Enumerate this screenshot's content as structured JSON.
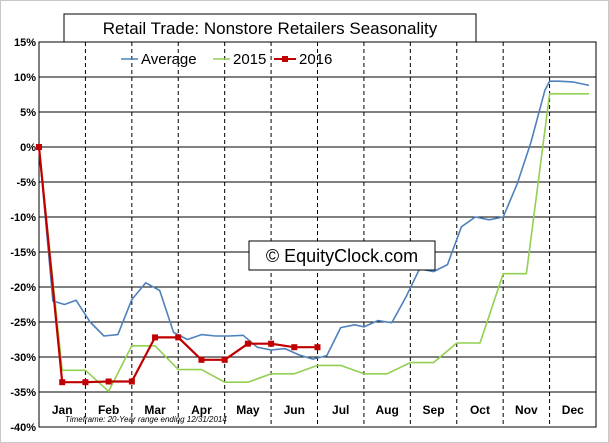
{
  "chart_data": {
    "type": "line",
    "title": "Retail Trade: Nonstore Retailers Seasonality",
    "watermark": "© EquityClock.com",
    "footnote": "Timeframe: 20-Year range ending 12/31/2014",
    "months": [
      "Jan",
      "Feb",
      "Mar",
      "Apr",
      "May",
      "Jun",
      "Jul",
      "Aug",
      "Sep",
      "Oct",
      "Nov",
      "Dec"
    ],
    "ylim": [
      -40,
      15
    ],
    "yticks": [
      15,
      10,
      5,
      0,
      -5,
      -10,
      -15,
      -20,
      -25,
      -30,
      -35,
      -40
    ],
    "ytick_labels": [
      "15%",
      "10%",
      "5%",
      "0%",
      "-5%",
      "-10%",
      "-15%",
      "-20%",
      "-25%",
      "-30%",
      "-35%",
      "-40%"
    ],
    "xlim": [
      0,
      12
    ],
    "grid": true,
    "legend_position": "top",
    "series": [
      {
        "name": "Average",
        "color": "#4f81bd",
        "marker": "none",
        "x": [
          0,
          0.3,
          0.55,
          0.8,
          1.1,
          1.4,
          1.7,
          2.0,
          2.3,
          2.6,
          2.9,
          3.2,
          3.5,
          3.8,
          4.1,
          4.4,
          4.7,
          5.0,
          5.3,
          5.6,
          5.9,
          6.2,
          6.5,
          6.8,
          7.0,
          7.3,
          7.6,
          7.9,
          8.2,
          8.5,
          8.8,
          9.1,
          9.4,
          9.7,
          10.0,
          10.3,
          10.6,
          10.9,
          11.0,
          11.2,
          11.5,
          11.85
        ],
        "y": [
          0,
          -22.0,
          -22.5,
          -21.9,
          -25.0,
          -27.0,
          -26.8,
          -21.8,
          -19.4,
          -20.5,
          -26.5,
          -27.5,
          -26.8,
          -27.0,
          -27.0,
          -26.9,
          -28.6,
          -29.0,
          -28.8,
          -29.7,
          -30.3,
          -29.8,
          -25.8,
          -25.4,
          -25.7,
          -24.8,
          -25.1,
          -21.5,
          -17.4,
          -17.8,
          -16.8,
          -11.4,
          -10.0,
          -10.4,
          -10.0,
          -5.3,
          0.7,
          8.1,
          9.4,
          9.4,
          9.3,
          8.8
        ]
      },
      {
        "name": "2015",
        "color": "#92d050",
        "marker": "none",
        "x": [
          0,
          0.5,
          1.0,
          1.5,
          2.0,
          2.5,
          3.0,
          3.5,
          4.0,
          4.5,
          5.0,
          5.5,
          6.0,
          6.5,
          7.0,
          7.5,
          8.0,
          8.5,
          9.0,
          9.5,
          10.0,
          10.5,
          11.0,
          11.5,
          11.85
        ],
        "y": [
          0,
          -31.9,
          -31.9,
          -34.9,
          -28.4,
          -28.4,
          -31.8,
          -31.8,
          -33.6,
          -33.6,
          -32.4,
          -32.4,
          -31.2,
          -31.2,
          -32.4,
          -32.4,
          -30.8,
          -30.8,
          -28.0,
          -28.0,
          -18.1,
          -18.1,
          7.6,
          7.6,
          7.6
        ]
      },
      {
        "name": "2016",
        "color": "#c00000",
        "marker": "square",
        "x": [
          0,
          0.5,
          1.0,
          1.5,
          2.0,
          2.5,
          3.0,
          3.5,
          4.0,
          4.5,
          5.0,
          5.5,
          6.0
        ],
        "y": [
          0,
          -33.6,
          -33.6,
          -33.5,
          -33.5,
          -27.2,
          -27.2,
          -30.4,
          -30.4,
          -28.1,
          -28.1,
          -28.6,
          -28.6
        ]
      }
    ]
  }
}
